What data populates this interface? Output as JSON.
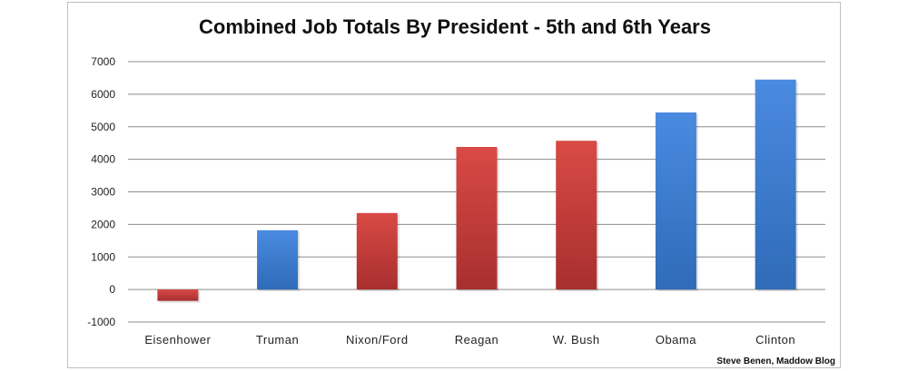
{
  "chart_data": {
    "type": "bar",
    "title": "Combined Job Totals By President - 5th and 6th Years",
    "categories": [
      "Eisenhower",
      "Truman",
      "Nixon/Ford",
      "Reagan",
      "W. Bush",
      "Obama",
      "Clinton"
    ],
    "values": [
      -350,
      1820,
      2350,
      4380,
      4570,
      5440,
      6450
    ],
    "bar_colors": [
      "#c0393b",
      "#3d7fcf",
      "#c0393b",
      "#c0393b",
      "#c0393b",
      "#3d7fcf",
      "#3d7fcf"
    ],
    "y_ticks": [
      -1000,
      0,
      1000,
      2000,
      3000,
      4000,
      5000,
      6000,
      7000
    ],
    "ylim": [
      -1000,
      7000
    ],
    "grid": true,
    "legend": "none",
    "credit": "Steve Benen, Maddow Blog"
  }
}
